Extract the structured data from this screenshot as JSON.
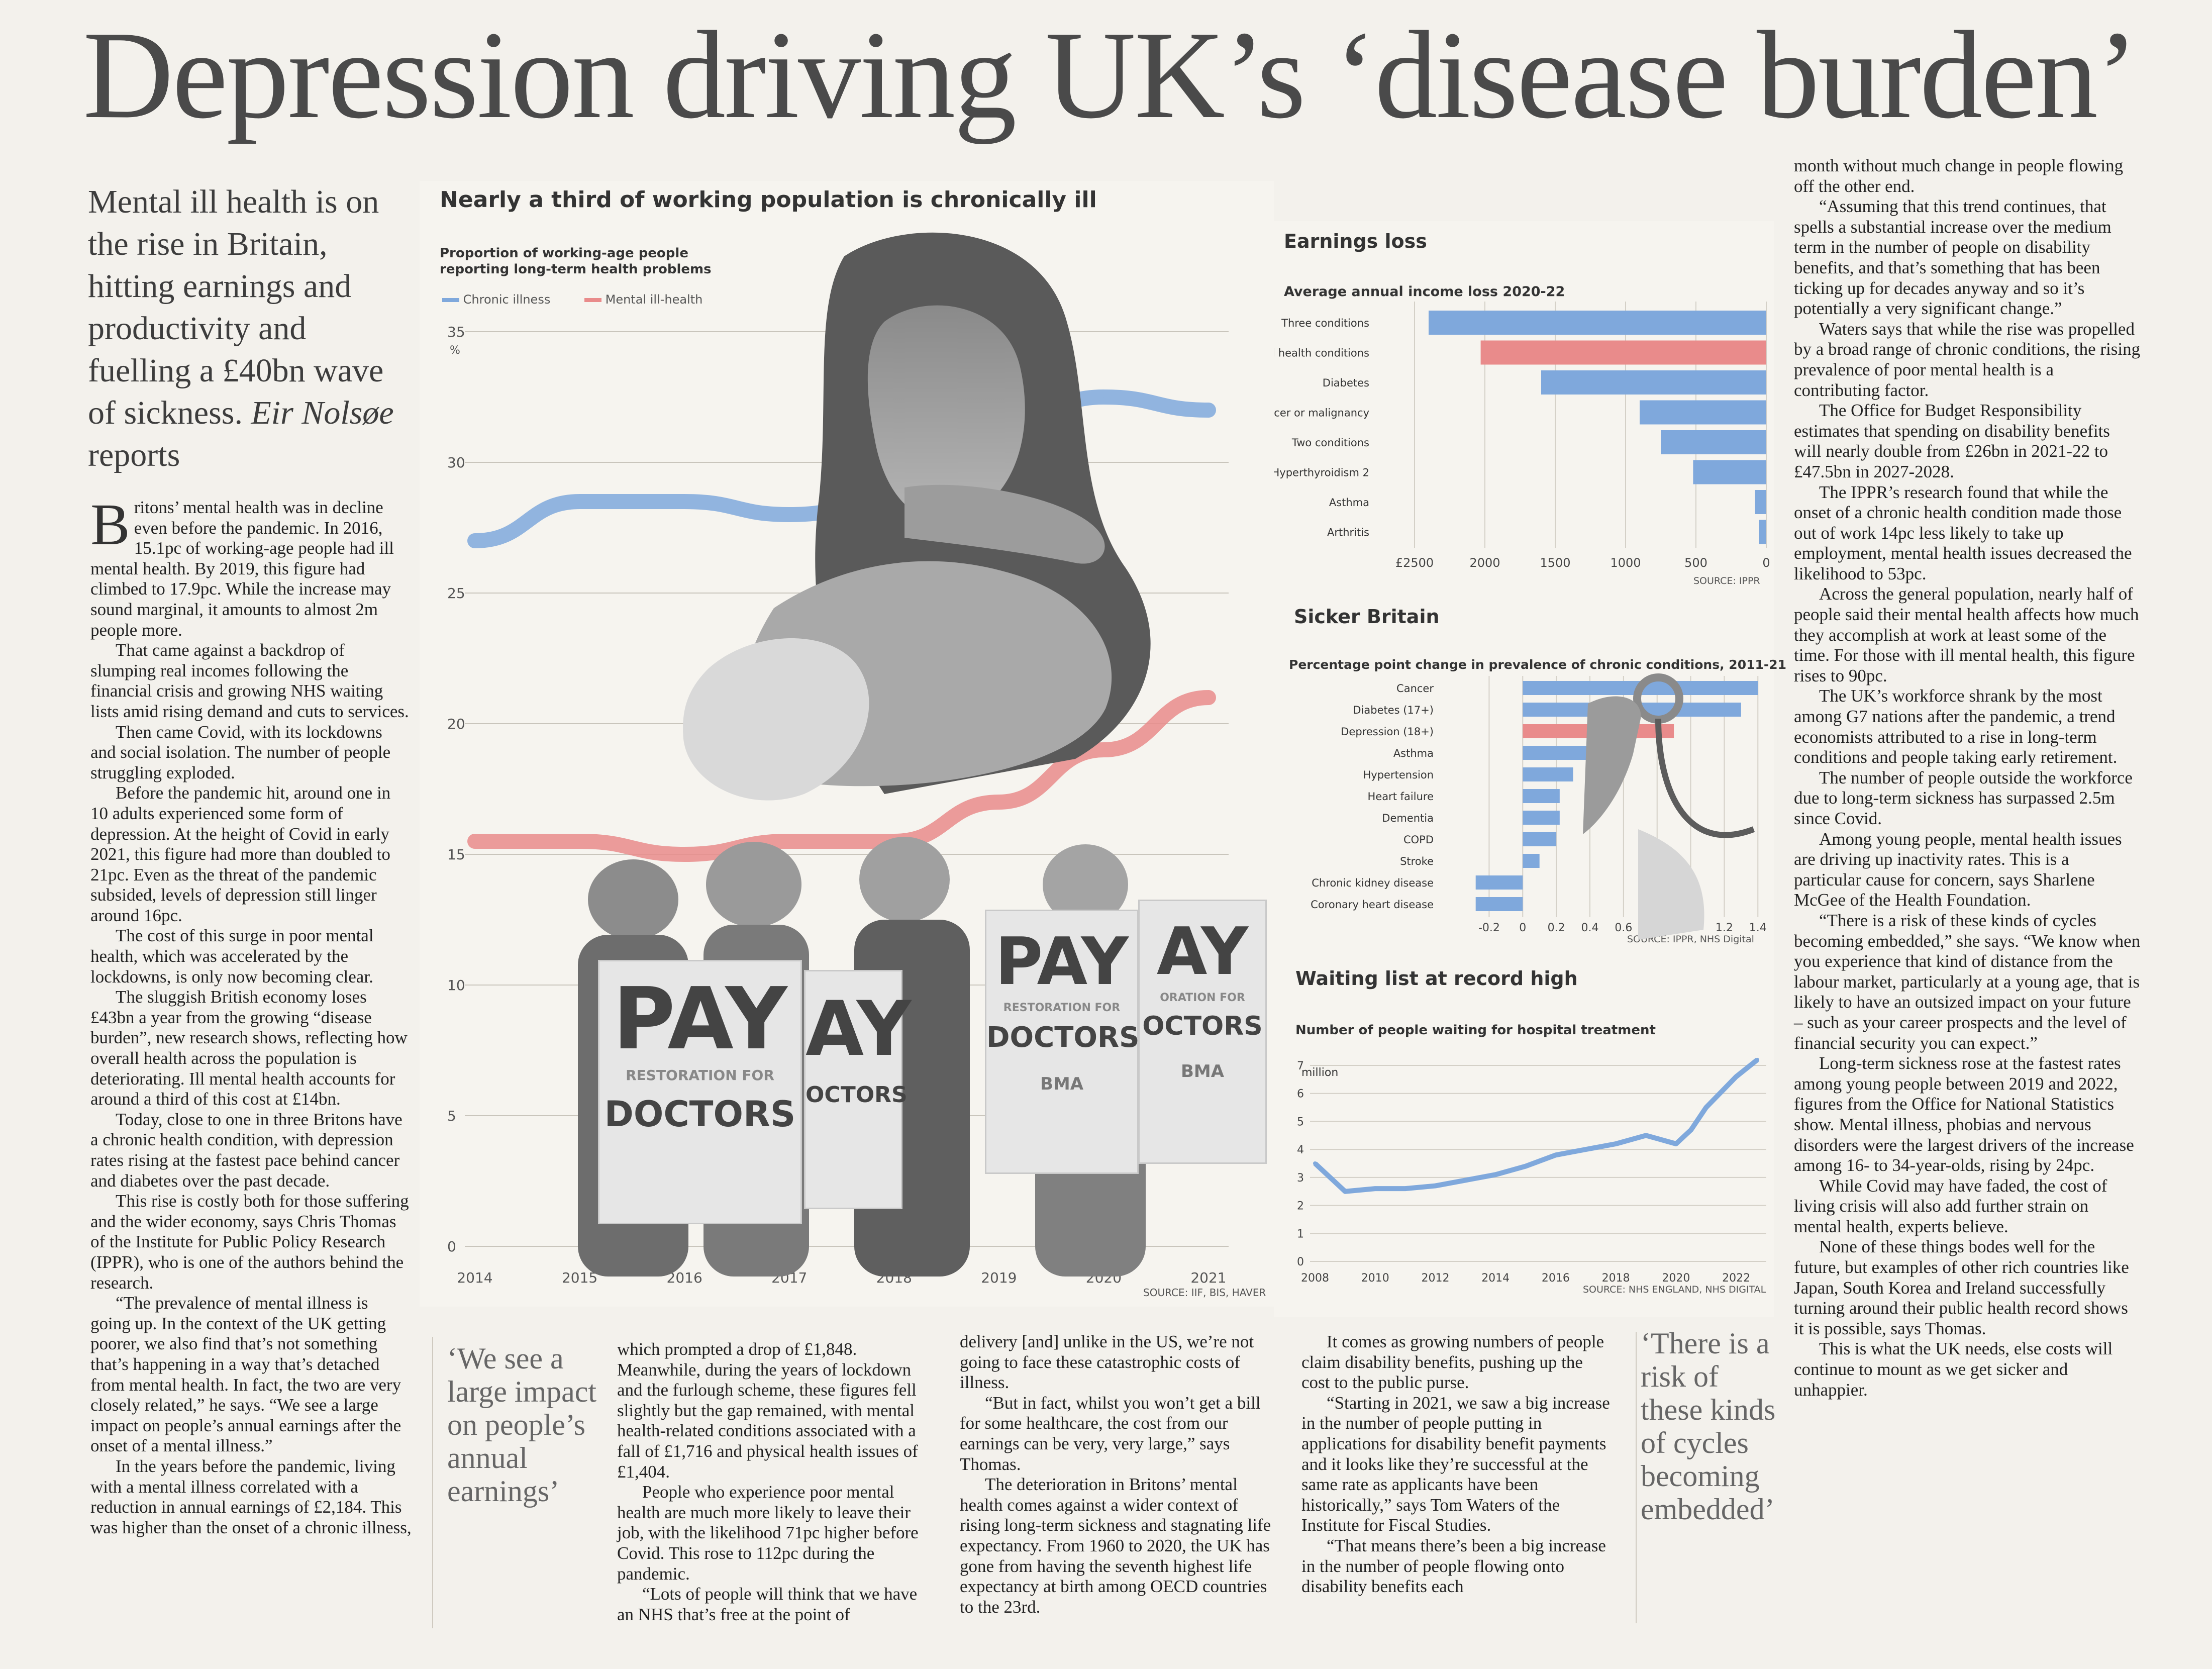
{
  "headline": "Depression driving UK’s ‘disease burden’",
  "standfirst": {
    "text": "Mental ill health is on the rise in Britain, hitting earnings and productivity and fuelling a £40bn wave of sickness.",
    "byline": "Eir Nolsøe",
    "byline_suffix": " reports"
  },
  "main_chart": {
    "title": "Nearly a third of working population is chronically ill",
    "subtitle": "Proportion of working-age people reporting long-term health problems",
    "legend": [
      "Chronic illness",
      "Mental ill-health"
    ],
    "unit": "%",
    "source": "SOURCE: IIF, BIS, HAVER",
    "colors": {
      "chronic": "#7fa8dc",
      "mental": "#e98b8b"
    }
  },
  "photo": {
    "sign_main": "PAY",
    "sign_sub": "RESTORATION FOR",
    "sign_doctors": "DOCTORS",
    "sign_partial_1": "AY",
    "sign_partial_2": "OCTORS",
    "sign_partial_3": "ORATION FOR",
    "bma": "BMA"
  },
  "earnings_chart": {
    "section": "Earnings loss",
    "title": "Average annual income loss 2020-22",
    "source": "SOURCE: IPPR"
  },
  "sicker_chart": {
    "section": "Sicker Britain",
    "title": "Percentage point change in prevalence of chronic conditions, 2011-21",
    "source": "SOURCE: IPPR, NHS Digital"
  },
  "waiting_chart": {
    "section": "Waiting list at record high",
    "title": "Number of people waiting for hospital treatment",
    "unit": "million",
    "source": "SOURCE: NHS ENGLAND, NHS DIGITAL"
  },
  "chart_data": [
    {
      "type": "line",
      "title": "Nearly a third of working population is chronically ill",
      "x": [
        2014,
        2015,
        2016,
        2017,
        2018,
        2019,
        2020,
        2021
      ],
      "ylim": [
        0,
        35
      ],
      "yticks": [
        0,
        5,
        10,
        15,
        20,
        25,
        30,
        35
      ],
      "series": [
        {
          "name": "Chronic illness",
          "values": [
            27,
            28.5,
            28.5,
            28,
            28.5,
            31.5,
            32.5,
            32
          ]
        },
        {
          "name": "Mental ill-health",
          "values": [
            15.5,
            15.5,
            15,
            15.5,
            15.5,
            17,
            19,
            21
          ]
        }
      ]
    },
    {
      "type": "bar",
      "title": "Average annual income loss 2020-22",
      "categories": [
        "Three conditions",
        "Mental health conditions",
        "Diabetes",
        "Cancer or malignancy",
        "Two conditions",
        "Hyperthyroidism 2",
        "Asthma",
        "Arthritis"
      ],
      "values": [
        2400,
        2030,
        1600,
        900,
        750,
        520,
        80,
        50
      ],
      "xticks": [
        "£2500",
        "2000",
        "1500",
        "1000",
        "500",
        "0"
      ],
      "xlim": [
        0,
        2500
      ]
    },
    {
      "type": "bar",
      "title": "Percentage point change in prevalence of chronic conditions, 2011-21",
      "categories": [
        "Cancer",
        "Diabetes (17+)",
        "Depression (18+)",
        "Asthma",
        "Hypertension",
        "Heart failure",
        "Dementia",
        "COPD",
        "Stroke",
        "Chronic kidney disease",
        "Coronary heart disease"
      ],
      "values": [
        1.4,
        1.3,
        0.9,
        0.55,
        0.3,
        0.22,
        0.22,
        0.2,
        0.1,
        -0.28,
        -0.28
      ],
      "xticks": [
        "-0.2",
        "0",
        "0.2",
        "0.4",
        "0.6",
        "0.8",
        "1",
        "1.2",
        "1.4"
      ],
      "xlim": [
        -0.3,
        1.45
      ]
    },
    {
      "type": "line",
      "title": "Number of people waiting for hospital treatment",
      "x": [
        2008,
        2009,
        2010,
        2011,
        2012,
        2013,
        2014,
        2015,
        2016,
        2017,
        2018,
        2019,
        2020,
        2020.5,
        2021,
        2022,
        2022.7
      ],
      "ylim": [
        0,
        7
      ],
      "yticks": [
        0,
        1,
        2,
        3,
        4,
        5,
        6,
        7
      ],
      "xticks": [
        "2008",
        "2010",
        "2012",
        "2014",
        "2016",
        "2018",
        "2020",
        "2022"
      ],
      "series": [
        {
          "name": "",
          "values": [
            3.5,
            2.5,
            2.6,
            2.6,
            2.7,
            2.9,
            3.1,
            3.4,
            3.8,
            4.0,
            4.2,
            4.5,
            4.2,
            4.7,
            5.5,
            6.6,
            7.2
          ]
        }
      ]
    }
  ],
  "columns": {
    "col1": [
      "ritons’ mental health was in decline even before the pandemic. In 2016, 15.1pc of working-age people had ill mental health. By 2019, this figure had climbed to 17.9pc. While the increase may sound marginal, it amounts to almost 2m people more.",
      "That came against a backdrop of slumping real incomes following the financial crisis and growing NHS waiting lists amid rising demand and cuts to services.",
      "Then came Covid, with its lockdowns and social isolation. The number of people struggling exploded.",
      "Before the pandemic hit, around one in 10 adults experienced some form of depression. At the height of Covid in early 2021, this figure had more than doubled to 21pc. Even as the threat of the pandemic subsided, levels of depression still linger around 16pc.",
      "The cost of this surge in poor mental health, which was accelerated by the lockdowns, is only now becoming clear.",
      "The sluggish British economy loses £43bn a year from the growing “disease burden”, new research shows, reflecting how overall health across the population is deteriorating. Ill mental health accounts for around a third of this cost at £14bn.",
      "Today, close to one in three Britons have a chronic health condition, with depression rates rising at the fastest pace behind cancer and diabetes over the past decade.",
      "This rise is costly both for those suffering and the wider economy, says Chris Thomas of the Institute for Public Policy Research (IPPR), who is one of the authors behind the research.",
      "“The prevalence of mental illness is going up. In the context of the UK getting poorer, we also find that’s not something that’s happening in a way that’s detached from mental health. In fact, the two are very closely related,” he says. “We see a large impact on people’s annual earnings after the onset of a mental illness.”",
      "In the years before the pandemic, living with a mental illness correlated with a reduction in annual earnings of £2,184. This was higher than the onset of a chronic illness,"
    ],
    "dropcap": "B",
    "pull1": "‘We see a large impact on people’s annual earnings’",
    "col2": [
      "which prompted a drop of £1,848. Meanwhile, during the years of lockdown and the furlough scheme, these figures fell slightly but the gap remained, with mental health-related conditions associated with a fall of £1,716 and physical health issues of £1,404.",
      "People who experience poor mental health are much more likely to leave their job, with the likelihood 71pc higher before Covid. This rose to 112pc during the pandemic.",
      "“Lots of people will think that we have an NHS that’s free at the point of"
    ],
    "col3": [
      "delivery [and] unlike in the US, we’re not going to face these catastrophic costs of illness.",
      "“But in fact, whilst you won’t get a bill for some healthcare, the cost from our earnings can be very, very large,” says Thomas.",
      "The deterioration in Britons’ mental health comes against a wider context of rising long-term sickness and stagnating life expectancy. From 1960 to 2020, the UK has gone from having the seventh highest life expectancy at birth among OECD countries to the 23rd."
    ],
    "col4": [
      "It comes as growing numbers of people claim disability benefits, pushing up the cost to the public purse.",
      "“Starting in 2021, we saw a big increase in the number of people putting in applications for disability benefit payments and it looks like they’re successful at the same rate as applicants have been historically,” says Tom Waters of the Institute for Fiscal Studies.",
      "“That means there’s been a big increase in the number of people flowing onto disability benefits each"
    ],
    "pull2": "‘There is a risk of these kinds of cycles becoming embedded’",
    "col5": [
      "month without much change in people flowing off the other end.",
      "“Assuming that this trend continues, that spells a substantial increase over the medium term in the number of people on disability benefits, and that’s something that has been ticking up for decades anyway and so it’s potentially a very significant change.”",
      "Waters says that while the rise was propelled by a broad range of chronic conditions, the rising prevalence of poor mental health is a contributing factor.",
      "The Office for Budget Responsibility estimates that spending on disability benefits will nearly double from £26bn in 2021-22 to £47.5bn in 2027-2028.",
      "The IPPR’s research found that while the onset of a chronic health condition made those out of work 14pc less likely to take up employment, mental health issues decreased the likelihood to 53pc.",
      "Across the general population, nearly half of people said their mental health affects how much they accomplish at work at least some of the time. For those with ill mental health, this figure rises to 90pc.",
      "The UK’s workforce shrank by the most among G7 nations after the pandemic, a trend economists attributed to a rise in long-term conditions and people taking early retirement.",
      "The number of people outside the workforce due to long-term sickness has surpassed 2.5m since Covid.",
      "Among young people, mental health issues are driving up inactivity rates. This is a particular cause for concern, says Sharlene McGee of the Health Foundation.",
      "“There is a risk of these kinds of cycles becoming embedded,” she says. “We know when you experience that kind of distance from the labour market, particularly at a young age, that is likely to have an outsized impact on your future – such as your career prospects and the level of financial security you can expect.”",
      "Long-term sickness rose at the fastest rates among young people between 2019 and 2022, figures from the Office for National Statistics show. Mental illness, phobias and nervous disorders were the largest drivers of the increase among 16- to 34-year-olds, rising by 24pc.",
      "While Covid may have faded, the cost of living crisis will also add further strain on mental health, experts believe.",
      "None of these things bodes well for the future, but examples of other rich countries like Japan, South Korea and Ireland successfully turning around their public health record shows it is possible, says Thomas.",
      "This is what the UK needs, else costs will continue to mount as we get sicker and unhappier."
    ]
  }
}
